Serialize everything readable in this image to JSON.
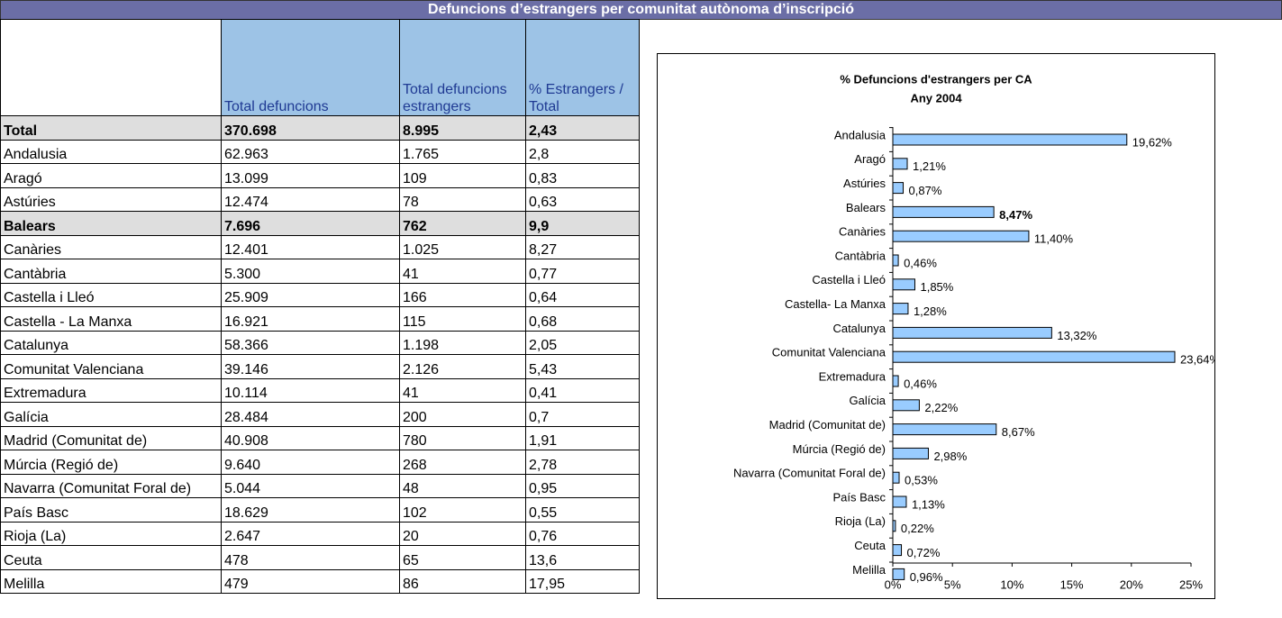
{
  "header": {
    "title": "Defuncions d’estrangers per comunitat autònoma d’inscripció"
  },
  "table": {
    "columns": [
      "Total defuncions",
      "Total defuncions estrangers",
      "% Estrangers / Total"
    ],
    "rows": [
      {
        "cells": [
          "Total",
          "370.698",
          "8.995",
          "2,43"
        ],
        "bold": true
      },
      {
        "cells": [
          "Andalusia",
          "62.963",
          "1.765",
          "2,8"
        ]
      },
      {
        "cells": [
          "Aragó",
          "13.099",
          "109",
          "0,83"
        ]
      },
      {
        "cells": [
          "Astúries",
          "12.474",
          "78",
          "0,63"
        ]
      },
      {
        "cells": [
          "Balears",
          "7.696",
          "762",
          "9,9"
        ],
        "bold": true
      },
      {
        "cells": [
          "Canàries",
          "12.401",
          "1.025",
          "8,27"
        ]
      },
      {
        "cells": [
          "Cantàbria",
          "5.300",
          "41",
          "0,77"
        ]
      },
      {
        "cells": [
          "Castella i Lleó",
          "25.909",
          "166",
          "0,64"
        ]
      },
      {
        "cells": [
          "Castella - La Manxa",
          "16.921",
          "115",
          "0,68"
        ]
      },
      {
        "cells": [
          "Catalunya",
          "58.366",
          "1.198",
          "2,05"
        ]
      },
      {
        "cells": [
          "Comunitat Valenciana",
          "39.146",
          "2.126",
          "5,43"
        ]
      },
      {
        "cells": [
          "Extremadura",
          "10.114",
          "41",
          "0,41"
        ]
      },
      {
        "cells": [
          "Galícia",
          "28.484",
          "200",
          "0,7"
        ]
      },
      {
        "cells": [
          "Madrid (Comunitat de)",
          "40.908",
          "780",
          "1,91"
        ]
      },
      {
        "cells": [
          "Múrcia (Regió de)",
          "9.640",
          "268",
          "2,78"
        ]
      },
      {
        "cells": [
          "Navarra (Comunitat Foral de)",
          "5.044",
          "48",
          "0,95"
        ]
      },
      {
        "cells": [
          "País Basc",
          "18.629",
          "102",
          "0,55"
        ]
      },
      {
        "cells": [
          "Rioja (La)",
          "2.647",
          "20",
          "0,76"
        ]
      },
      {
        "cells": [
          "Ceuta",
          "478",
          "65",
          "13,6"
        ]
      },
      {
        "cells": [
          "Melilla",
          "479",
          "86",
          "17,95"
        ]
      }
    ]
  },
  "chart_data": {
    "type": "hbar",
    "title": "% Defuncions d'estrangers per CA",
    "subtitle": "Any 2004",
    "categories": [
      "Andalusia",
      "Aragó",
      "Astúries",
      "Balears",
      "Canàries",
      "Cantàbria",
      "Castella i Lleó",
      "Castella- La Manxa",
      "Catalunya",
      "Comunitat Valenciana",
      "Extremadura",
      "Galícia",
      "Madrid (Comunitat de)",
      "Múrcia (Regió de)",
      "Navarra (Comunitat Foral de)",
      "País Basc",
      "Rioja (La)",
      "Ceuta",
      "Melilla"
    ],
    "values": [
      19.62,
      1.21,
      0.87,
      8.47,
      11.4,
      0.46,
      1.85,
      1.28,
      13.32,
      23.64,
      0.46,
      2.22,
      8.67,
      2.98,
      0.53,
      1.13,
      0.22,
      0.72,
      0.96
    ],
    "value_labels": [
      "19,62%",
      "1,21%",
      "0,87%",
      "8,47%",
      "11,40%",
      "0,46%",
      "1,85%",
      "1,28%",
      "13,32%",
      "23,64%",
      "0,46%",
      "2,22%",
      "8,67%",
      "2,98%",
      "0,53%",
      "1,13%",
      "0,22%",
      "0,72%",
      "0,96%"
    ],
    "bold_categories": [
      "Balears"
    ],
    "color": "#99ccff",
    "xlim": [
      0,
      25
    ],
    "xticks": [
      {
        "value": 0,
        "label": "0%"
      },
      {
        "value": 5,
        "label": "5%"
      },
      {
        "value": 10,
        "label": "10%"
      },
      {
        "value": 15,
        "label": "15%"
      },
      {
        "value": 20,
        "label": "20%"
      },
      {
        "value": 25,
        "label": "25%"
      }
    ]
  }
}
